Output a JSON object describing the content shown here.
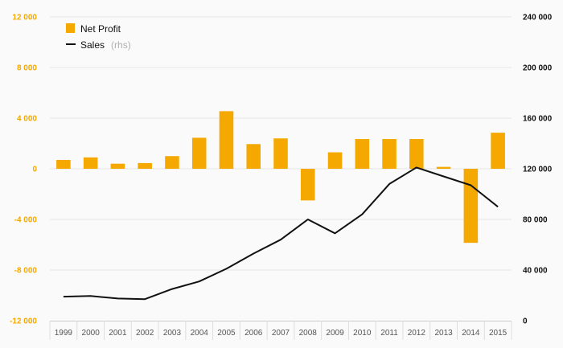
{
  "chart_data": {
    "type": "bar+line",
    "title": "",
    "categories": [
      "1999",
      "2000",
      "2001",
      "2002",
      "2003",
      "2004",
      "2005",
      "2006",
      "2007",
      "2008",
      "2009",
      "2010",
      "2011",
      "2012",
      "2013",
      "2014",
      "2015"
    ],
    "series": [
      {
        "name": "Net Profit",
        "type": "bar",
        "axis": "left",
        "color": "#f5a900",
        "values": [
          700,
          900,
          400,
          450,
          1000,
          2450,
          4550,
          1950,
          2400,
          -2500,
          1300,
          2350,
          2350,
          2350,
          150,
          -5850,
          2850
        ]
      },
      {
        "name": "Sales",
        "name_suffix": "(rhs)",
        "type": "line",
        "axis": "right",
        "color": "#111111",
        "values": [
          19000,
          19500,
          17500,
          17000,
          25000,
          31000,
          41000,
          53000,
          64000,
          80000,
          69000,
          84000,
          108000,
          121000,
          114000,
          107000,
          90000
        ]
      }
    ],
    "y_left": {
      "ylim": [
        -12000,
        12000
      ],
      "ticks": [
        -12000,
        -8000,
        -4000,
        0,
        4000,
        8000,
        12000
      ],
      "tick_labels": [
        "-12 000",
        "-8 000",
        "-4 000",
        "0",
        "4 000",
        "8 000",
        "12 000"
      ]
    },
    "y_right": {
      "ylim": [
        0,
        240000
      ],
      "ticks": [
        0,
        40000,
        80000,
        120000,
        160000,
        200000,
        240000
      ],
      "tick_labels": [
        "0",
        "40 000",
        "80 000",
        "120 000",
        "160 000",
        "200 000",
        "240 000"
      ]
    },
    "grid": true,
    "legend_position": "top-left"
  }
}
